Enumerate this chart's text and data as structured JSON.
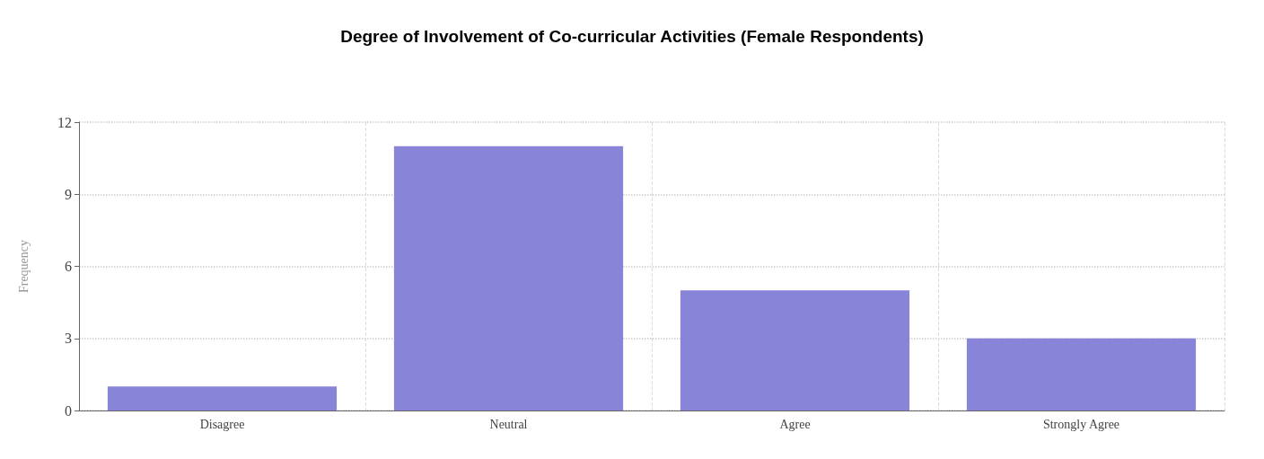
{
  "chart_data": {
    "type": "bar",
    "title": "Degree of Involvement of Co-curricular Activities (Female Respondents)",
    "ylabel": "Frequency",
    "categories": [
      "Disagree",
      "Neutral",
      "Agree",
      "Strongly Agree"
    ],
    "values": [
      1,
      11,
      5,
      3
    ],
    "color": "#8884d8",
    "ylim": [
      0,
      12
    ],
    "yticks": [
      0,
      3,
      6,
      9,
      12
    ],
    "grid": true
  }
}
